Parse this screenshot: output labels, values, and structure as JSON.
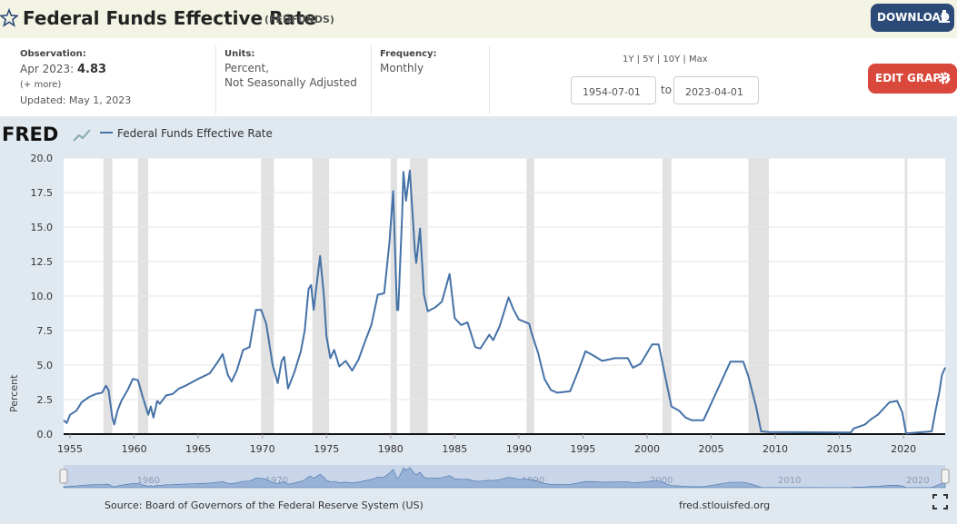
{
  "header": {
    "title": "Federal Funds Effective Rate",
    "series_id": "(FEDFUNDS)",
    "download": "DOWNLOAD"
  },
  "info": {
    "observation_label": "Observation:",
    "observation_date": "Apr 2023:",
    "observation_value": "4.83",
    "more": "(+ more)",
    "updated": "Updated: May 1, 2023",
    "units_label": "Units:",
    "units_line1": "Percent,",
    "units_line2": "Not Seasonally Adjusted",
    "frequency_label": "Frequency:",
    "frequency": "Monthly",
    "range_options": "1Y | 5Y | 10Y | Max",
    "start_date": "1954-07-01",
    "to": "to",
    "end_date": "2023-04-01",
    "edit_graph": "EDIT GRAPH"
  },
  "logo": "FRED",
  "chart_data": {
    "type": "line",
    "series": [
      {
        "name": "Federal Funds Effective Rate",
        "color": "#4572a7",
        "x": [
          1954.5,
          1954.75,
          1955.0,
          1955.5,
          1955.9,
          1956.5,
          1957.0,
          1957.5,
          1957.8,
          1958.0,
          1958.3,
          1958.45,
          1958.7,
          1959.0,
          1959.5,
          1959.9,
          1960.3,
          1960.6,
          1960.9,
          1961.1,
          1961.3,
          1961.5,
          1961.8,
          1962.0,
          1962.5,
          1963.0,
          1963.5,
          1964.0,
          1965.0,
          1965.9,
          1966.5,
          1966.9,
          1967.3,
          1967.6,
          1968.0,
          1968.5,
          1969.0,
          1969.5,
          1969.9,
          1970.3,
          1970.8,
          1971.2,
          1971.5,
          1971.7,
          1972.0,
          1972.5,
          1973.0,
          1973.3,
          1973.6,
          1973.8,
          1974.0,
          1974.5,
          1974.8,
          1975.0,
          1975.3,
          1975.6,
          1976.0,
          1976.5,
          1977.0,
          1977.5,
          1978.0,
          1978.5,
          1979.0,
          1979.5,
          1979.9,
          1980.2,
          1980.5,
          1980.6,
          1980.9,
          1981.0,
          1981.2,
          1981.5,
          1981.9,
          1982.0,
          1982.3,
          1982.6,
          1982.9,
          1983.5,
          1984.0,
          1984.6,
          1985.0,
          1985.5,
          1986.0,
          1986.6,
          1987.0,
          1987.7,
          1988.0,
          1988.5,
          1989.2,
          1989.6,
          1990.0,
          1990.8,
          1991.0,
          1991.5,
          1992.0,
          1992.5,
          1993.0,
          1994.0,
          1994.6,
          1995.2,
          1995.8,
          1996.5,
          1997.5,
          1998.5,
          1998.9,
          1999.5,
          2000.4,
          2000.9,
          2001.5,
          2001.9,
          2002.5,
          2003.0,
          2003.5,
          2004.4,
          2006.5,
          2007.5,
          2007.9,
          2008.5,
          2008.9,
          2009.5,
          2015.9,
          2016.1,
          2017.0,
          2017.5,
          2018.0,
          2018.9,
          2019.5,
          2019.9,
          2020.2,
          2022.2,
          2022.5,
          2022.8,
          2023.0,
          2023.25
        ],
        "values": [
          1.0,
          0.8,
          1.4,
          1.7,
          2.3,
          2.7,
          2.9,
          3.0,
          3.5,
          3.2,
          1.2,
          0.7,
          1.7,
          2.4,
          3.2,
          4.0,
          3.9,
          2.9,
          2.0,
          1.4,
          2.0,
          1.2,
          2.4,
          2.2,
          2.8,
          2.9,
          3.3,
          3.5,
          4.0,
          4.4,
          5.2,
          5.8,
          4.3,
          3.8,
          4.6,
          6.1,
          6.3,
          9.0,
          9.0,
          8.0,
          5.0,
          3.7,
          5.3,
          5.6,
          3.3,
          4.5,
          6.0,
          7.5,
          10.5,
          10.8,
          9.0,
          12.9,
          10.0,
          7.1,
          5.5,
          6.1,
          4.9,
          5.3,
          4.6,
          5.4,
          6.7,
          7.9,
          10.1,
          10.2,
          13.8,
          17.6,
          9.0,
          9.0,
          15.9,
          19.0,
          16.9,
          19.1,
          13.2,
          12.4,
          14.9,
          10.1,
          8.9,
          9.2,
          9.6,
          11.6,
          8.4,
          7.9,
          8.1,
          6.3,
          6.2,
          7.2,
          6.8,
          7.8,
          9.9,
          9.0,
          8.3,
          8.0,
          7.3,
          5.9,
          4.0,
          3.2,
          3.0,
          3.1,
          4.5,
          6.0,
          5.7,
          5.3,
          5.5,
          5.5,
          4.8,
          5.1,
          6.5,
          6.5,
          3.8,
          2.0,
          1.7,
          1.2,
          1.0,
          1.0,
          5.25,
          5.25,
          4.2,
          2.0,
          0.2,
          0.15,
          0.12,
          0.4,
          0.7,
          1.1,
          1.4,
          2.3,
          2.4,
          1.6,
          0.05,
          0.2,
          1.7,
          3.1,
          4.3,
          4.83
        ]
      }
    ],
    "recessions": [
      [
        1957.6,
        1958.3
      ],
      [
        1960.3,
        1961.1
      ],
      [
        1969.9,
        1970.9
      ],
      [
        1973.9,
        1975.2
      ],
      [
        1980.0,
        1980.5
      ],
      [
        1981.5,
        1982.9
      ],
      [
        1990.6,
        1991.2
      ],
      [
        2001.2,
        2001.9
      ],
      [
        2007.9,
        2009.5
      ],
      [
        2020.1,
        2020.3
      ]
    ],
    "y_label": "Percent",
    "xlim": [
      1954.5,
      2023.25
    ],
    "xticks": [
      1955,
      1960,
      1965,
      1970,
      1975,
      1980,
      1985,
      1990,
      1995,
      2000,
      2005,
      2010,
      2015,
      2020
    ],
    "ylim": [
      0,
      20
    ],
    "yticks": [
      {
        "value": 0,
        "label": "0.0"
      },
      2.5,
      {
        "value": 5,
        "label": "5.0"
      },
      7.5,
      {
        "value": 10,
        "label": "10.0"
      },
      12.5,
      {
        "value": 15,
        "label": "15.0"
      },
      17.5,
      {
        "value": 20,
        "label": "20.0"
      }
    ],
    "grid": true,
    "legend": "top-left",
    "source": "Source: Board of Governors of the Federal Reserve System (US)",
    "site": "fred.stlouisfed.org"
  }
}
